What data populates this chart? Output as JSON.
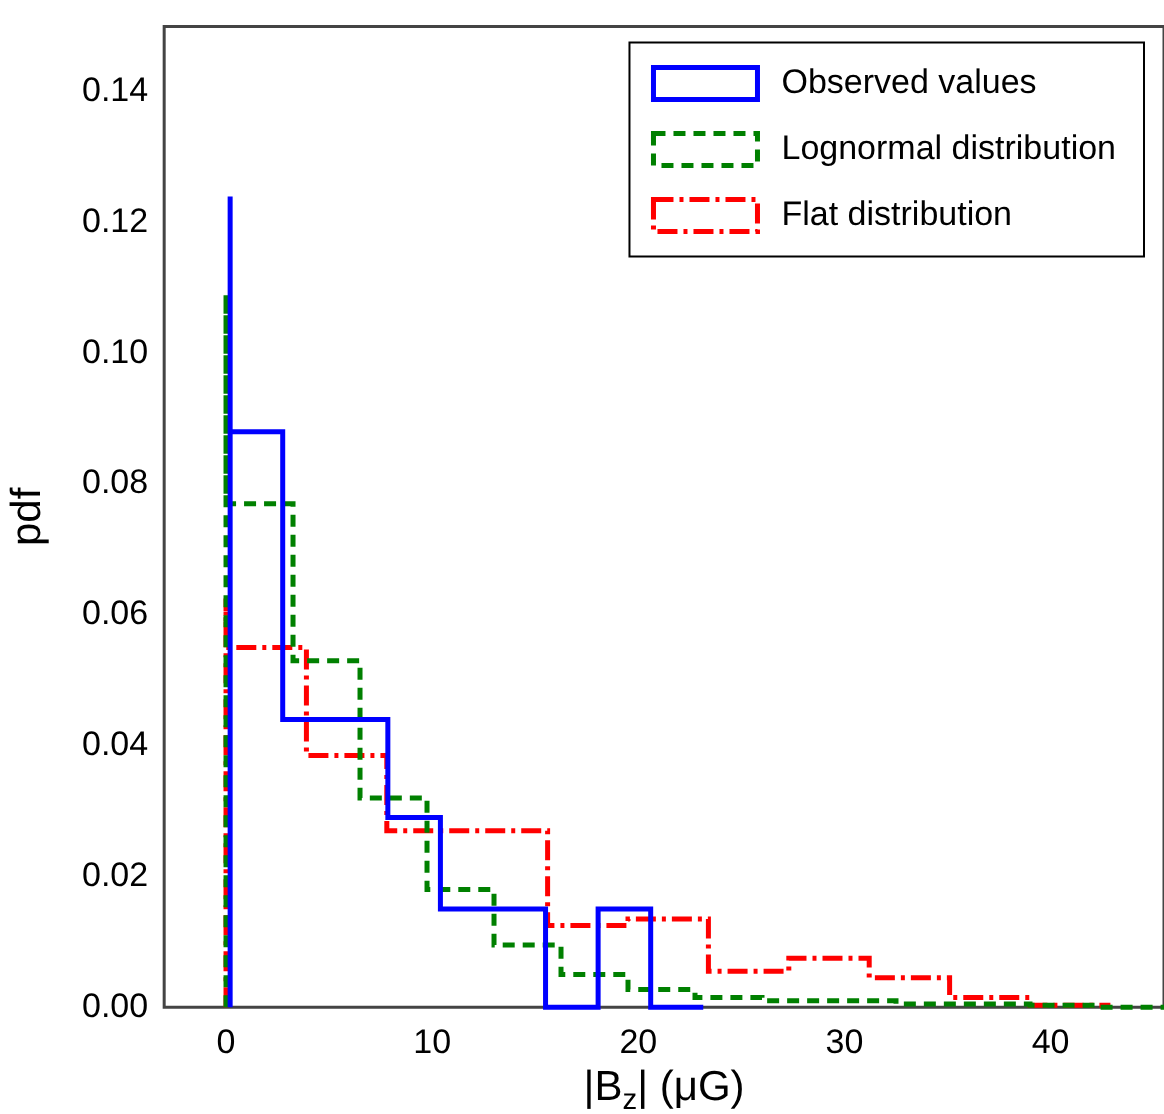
{
  "chart_data": {
    "type": "step",
    "xlabel": "|B$_{z}$| (μG)",
    "ylabel": "pdf",
    "xlim": [
      -3,
      45.5
    ],
    "xticks": [
      0,
      10,
      20,
      30,
      40
    ],
    "ylim": [
      0,
      0.15
    ],
    "yticks": [
      {
        "value": 0,
        "label": "0.00"
      },
      {
        "value": 0.02,
        "label": "0.02"
      },
      {
        "value": 0.04,
        "label": "0.04"
      },
      {
        "value": 0.06,
        "label": "0.06"
      },
      {
        "value": 0.08,
        "label": "0.08"
      },
      {
        "value": 0.1,
        "label": "0.10"
      },
      {
        "value": 0.12,
        "label": "0.12"
      },
      {
        "value": 0.14,
        "label": "0.14"
      }
    ],
    "grid": false,
    "legend": "top right",
    "series": [
      {
        "name": "Observed values",
        "color": "#0000ff",
        "line_style": "solid",
        "x": [
          0.2,
          0.2,
          2.75,
          5.3,
          7.85,
          10.4,
          12.95,
          15.5,
          18.05,
          20.6,
          23.15
        ],
        "values": [
          0,
          0.124,
          0.088,
          0.044,
          0.044,
          0.029,
          0.015,
          0.015,
          0,
          0.015,
          0
        ]
      },
      {
        "name": "Lognormal distribution",
        "color": "#008000",
        "line_style": "dashed",
        "x": [
          0,
          0,
          3.25,
          6.5,
          9.75,
          13,
          16.25,
          19.5,
          22.75,
          26,
          29.25,
          32.5,
          35.75,
          39,
          42.25,
          45.5
        ],
        "values": [
          0,
          0.109,
          0.077,
          0.053,
          0.032,
          0.018,
          0.0095,
          0.005,
          0.0027,
          0.0015,
          0.001,
          0.001,
          0.0005,
          0.0005,
          0.0003,
          0
        ]
      },
      {
        "name": "Flat distribution",
        "color": "#ff0000",
        "line_style": "dashdot",
        "x": [
          0,
          0,
          3.9,
          7.8,
          11.7,
          15.6,
          19.5,
          23.4,
          27.3,
          31.2,
          35.1,
          39,
          42.9
        ],
        "values": [
          0,
          0.0625,
          0.055,
          0.0385,
          0.027,
          0.027,
          0.0125,
          0.0135,
          0.0055,
          0.0075,
          0.0045,
          0.0015,
          0.0003
        ]
      }
    ]
  }
}
